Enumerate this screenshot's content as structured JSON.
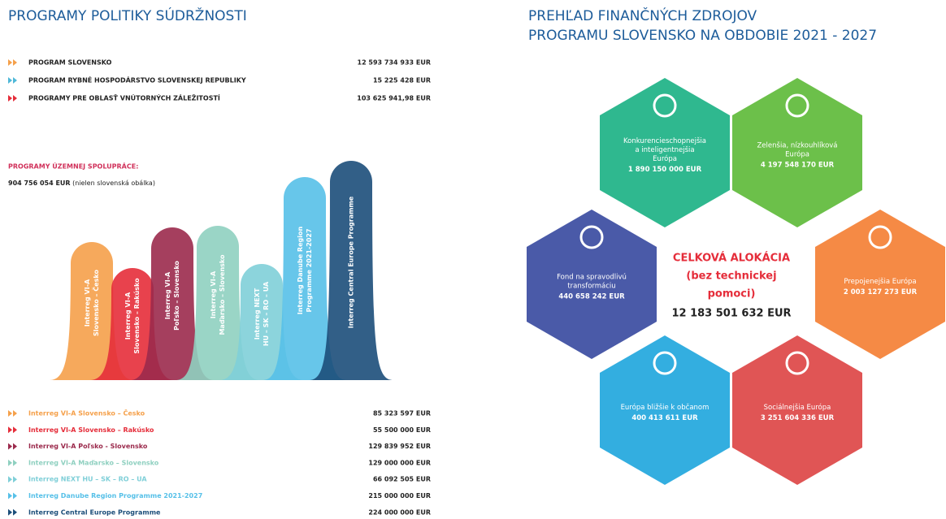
{
  "left": {
    "title": "PROGRAMY POLITIKY SÚDRŽNOSTI",
    "programs": [
      {
        "name": "PROGRAM SLOVENSKO",
        "amount": "12 593 734 933 EUR"
      },
      {
        "name": "PROGRAM RYBNÉ HOSPODÁRSTVO SLOVENSKEJ REPUBLIKY",
        "amount": "15 225 428 EUR"
      },
      {
        "name": "PROGRAMY PRE OBLASŤ VNÚTORNÝCH ZÁLEŽITOSTÍ",
        "amount": "103 625 941,98 EUR"
      }
    ],
    "cooperation": {
      "heading": "PROGRAMY ÚZEMNEJ SPOLUPRÁCE:",
      "total": "904 756 054 EUR",
      "note": "(nielen slovenská obálka)",
      "programs": [
        {
          "label": [
            "Interreg VI-A",
            "Slovensko – Česko"
          ],
          "name": "Interreg VI-A Slovensko – Česko",
          "amount": "85 323 597 EUR"
        },
        {
          "label": [
            "Interreg VI-A",
            "Slovensko – Rakúsko"
          ],
          "name": "Interreg VI-A Slovensko – Rakúsko",
          "amount": "55 500 000 EUR"
        },
        {
          "label": [
            "Interreg VI-A",
            "Poľsko – Slovensko"
          ],
          "name": "Interreg VI-A Poľsko - Slovensko",
          "amount": "129 839 952 EUR"
        },
        {
          "label": [
            "Interreg VI-A",
            "Maďarsko – Slovensko"
          ],
          "name": "Interreg VI-A Maďarsko – Slovensko",
          "amount": "129 000 000 EUR"
        },
        {
          "label": [
            "Interreg NEXT",
            "HU – SK – RO – UA"
          ],
          "name": "Interreg NEXT HU – SK – RO – UA",
          "amount": "66 092 505 EUR"
        },
        {
          "label": [
            "Interreg Danube Region",
            "Programme 2021-2027"
          ],
          "name": "Interreg Danube Region Programme 2021-2027",
          "amount": "215 000 000 EUR"
        },
        {
          "label": [
            "Interreg Central Europe Programme"
          ],
          "name": "Interreg Central Europe Programme",
          "amount": "224 000 000 EUR"
        }
      ]
    }
  },
  "right": {
    "title": [
      "PREHĽAD FINANČNÝCH ZDROJOV",
      "PROGRAMU SLOVENSKO NA OBDOBIE 2021 - 2027"
    ],
    "center": {
      "lines": [
        "CELKOVÁ ALOKÁCIA",
        "(bez technickej",
        "pomoci)"
      ],
      "total": "12 183 501 632 EUR"
    },
    "objectives": [
      {
        "name": [
          "Konkurencieschopnejšia",
          "a inteligentnejšia",
          "Európa"
        ],
        "amount": "1 890 150 000 EUR"
      },
      {
        "name": [
          "Zelenšia, nízkouhlíková",
          "Európa"
        ],
        "amount": "4 197 548 170 EUR"
      },
      {
        "name": [
          "Fond na spravodlivú",
          "transformáciu"
        ],
        "amount": "440 658 242 EUR"
      },
      {
        "name": [
          "Prepojenejšia Európa"
        ],
        "amount": "2 003 127 273 EUR"
      },
      {
        "name": [
          "Európa bližšie k občanom"
        ],
        "amount": "400 413 611 EUR"
      },
      {
        "name": [
          "Sociálnejšia Európa"
        ],
        "amount": "3 251 604 336 EUR"
      }
    ]
  }
}
